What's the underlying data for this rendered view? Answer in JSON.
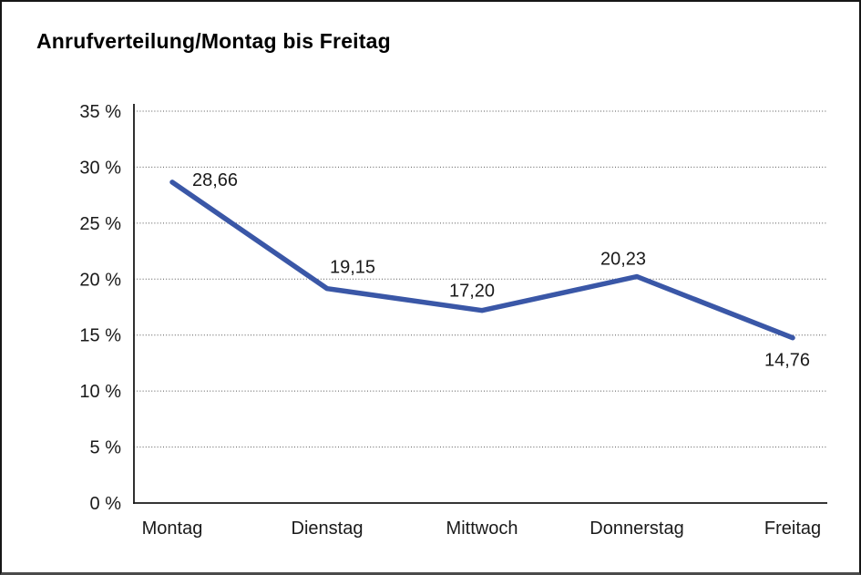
{
  "title": "Anrufverteilung/Montag bis Freitag",
  "chart_data": {
    "type": "line",
    "title": "Anrufverteilung/Montag bis Freitag",
    "categories": [
      "Montag",
      "Dienstag",
      "Mittwoch",
      "Donnerstag",
      "Freitag"
    ],
    "values": [
      28.66,
      19.15,
      17.2,
      20.23,
      14.76
    ],
    "value_labels": [
      "28,66",
      "19,15",
      "17,20",
      "20,23",
      "14,76"
    ],
    "series_name": "Anrufverteilung",
    "xlabel": "",
    "ylabel": "",
    "ylim": [
      0,
      35
    ],
    "ytick_step": 5,
    "ytick_suffix": " %",
    "ytick_labels": [
      "0 %",
      "5 %",
      "10 %",
      "15 %",
      "20 %",
      "25 %",
      "30 %",
      "35 %"
    ],
    "grid": "horizontal-dotted",
    "legend": "none",
    "colors": {
      "line": "#3A57A7",
      "grid": "#555555",
      "axis": "#1a1a1a",
      "text": "#1a1a1a",
      "background": "#ffffff"
    }
  }
}
